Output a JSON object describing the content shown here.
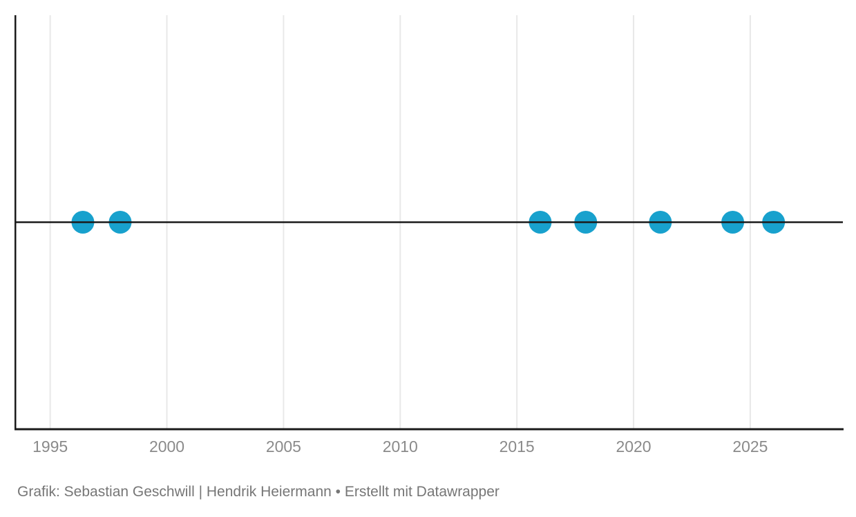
{
  "page": {
    "background": "#ffffff"
  },
  "chart_data": {
    "type": "scatter",
    "title": "",
    "xlabel": "",
    "ylabel": "",
    "x": [
      1996.4,
      1998.0,
      2016.0,
      2017.95,
      2021.15,
      2024.25,
      2026.0
    ],
    "y": [
      0,
      0,
      0,
      0,
      0,
      0,
      0
    ],
    "xlim": [
      1993.5,
      2029.0
    ],
    "ylim": [
      -1,
      1
    ],
    "x_ticks": [
      1995,
      2000,
      2005,
      2010,
      2015,
      2020,
      2025
    ],
    "x_tick_labels": [
      "1995",
      "2000",
      "2005",
      "2010",
      "2015",
      "2020",
      "2025"
    ],
    "grid": "vertical-only",
    "legend": "none",
    "zero_line_y": 0,
    "point_radius_px": 16.5,
    "style": {
      "point_color": "#18a1cd",
      "grid_color": "#e8e8e8",
      "axis_color": "#1a1a1a",
      "zero_line_color": "#1a1a1a",
      "tick_label_color": "#8a8a8a"
    }
  },
  "footer": {
    "credit": "Grafik: Sebastian Geschwill | Hendrik Heiermann • Erstellt mit Datawrapper",
    "color": "#767676"
  }
}
